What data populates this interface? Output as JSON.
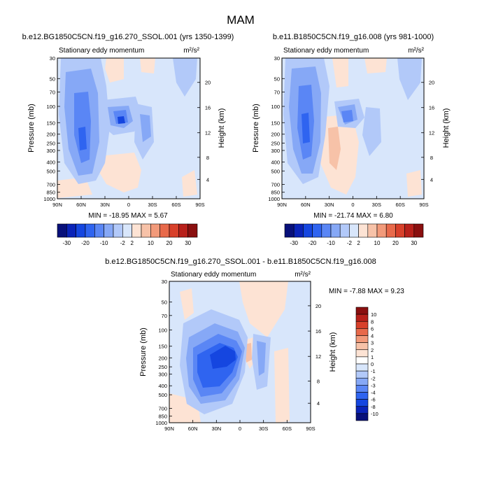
{
  "page_title": "MAM",
  "chart_data": [
    {
      "type": "heatmap",
      "id": "panel1",
      "title": "b.e12.BG1850C5CN.f19_g16.270_SSOL.001 (yrs 1350-1399)",
      "subtitle": "Stationary eddy momentum",
      "units": "m²/s²",
      "ylabel": "Pressure (mb)",
      "ylabel_right": "Height (km)",
      "x_ticks": [
        "90N",
        "60N",
        "30N",
        "0",
        "30S",
        "60S",
        "90S"
      ],
      "y_ticks": [
        "30",
        "50",
        "70",
        "100",
        "150",
        "200",
        "250",
        "300",
        "400",
        "500",
        "700",
        "850",
        "1000"
      ],
      "height_ticks": [
        "20",
        "16",
        "12",
        "8",
        "4"
      ],
      "stats": "MIN = -18.95   MAX =   5.67",
      "min": -18.95,
      "max": 5.67
    },
    {
      "type": "heatmap",
      "id": "panel2",
      "title": "b.e11.B1850C5CN.f19_g16.008 (yrs 981-1000)",
      "subtitle": "Stationary eddy momentum",
      "units": "m²/s²",
      "ylabel": "Pressure (mb)",
      "ylabel_right": "Height (km)",
      "x_ticks": [
        "90N",
        "60N",
        "30N",
        "0",
        "30S",
        "60S",
        "90S"
      ],
      "y_ticks": [
        "30",
        "50",
        "70",
        "100",
        "150",
        "200",
        "250",
        "300",
        "400",
        "500",
        "700",
        "850",
        "1000"
      ],
      "height_ticks": [
        "20",
        "16",
        "12",
        "8",
        "4"
      ],
      "stats": "MIN = -21.74   MAX =   6.80",
      "min": -21.74,
      "max": 6.8
    },
    {
      "type": "heatmap",
      "id": "panel3",
      "title": "b.e12.BG1850C5CN.f19_g16.270_SSOL.001 - b.e11.B1850C5CN.f19_g16.008",
      "subtitle": "Stationary eddy momentum",
      "units": "m²/s²",
      "ylabel": "Pressure (mb)",
      "ylabel_right": "Height (km)",
      "x_ticks": [
        "90N",
        "60N",
        "30N",
        "0",
        "30S",
        "60S",
        "90S"
      ],
      "y_ticks": [
        "30",
        "50",
        "70",
        "100",
        "150",
        "200",
        "250",
        "300",
        "400",
        "500",
        "700",
        "850",
        "1000"
      ],
      "height_ticks": [
        "20",
        "16",
        "12",
        "8",
        "4"
      ],
      "stats": "MIN = -7.88   MAX =   9.23",
      "min": -7.88,
      "max": 9.23
    }
  ],
  "colorbar_top": {
    "labels": [
      "-30",
      "-20",
      "-10",
      "-2",
      "2",
      "10",
      "20",
      "30"
    ],
    "colors": [
      "#08107a",
      "#0a23b8",
      "#1546e0",
      "#2f64f0",
      "#5a86f5",
      "#86a8f6",
      "#b2c9f9",
      "#d8e6fb",
      "#fde3d4",
      "#f7c2a8",
      "#f29a7a",
      "#e8694a",
      "#d8402a",
      "#b8201a",
      "#8a0f0f"
    ]
  },
  "colorbar_diff": {
    "labels": [
      "10",
      "8",
      "6",
      "4",
      "3",
      "2",
      "1",
      "0",
      "-1",
      "-2",
      "-3",
      "-4",
      "-6",
      "-8",
      "-10"
    ],
    "colors": [
      "#8a0f0f",
      "#b8201a",
      "#d8402a",
      "#e8694a",
      "#f29a7a",
      "#f7c2a8",
      "#fde3d4",
      "#ffffff",
      "#d8e6fb",
      "#b2c9f9",
      "#86a8f6",
      "#5a86f5",
      "#2f64f0",
      "#1546e0",
      "#0a23b8",
      "#08107a"
    ]
  },
  "fill_colors": {
    "background": "#d8e6fb",
    "neg1": "#b2c9f9",
    "neg2": "#86a8f6",
    "neg3": "#5a86f5",
    "neg4": "#2f64f0",
    "neg5": "#1546e0",
    "pos1": "#fde3d4",
    "pos2": "#f7c2a8"
  }
}
